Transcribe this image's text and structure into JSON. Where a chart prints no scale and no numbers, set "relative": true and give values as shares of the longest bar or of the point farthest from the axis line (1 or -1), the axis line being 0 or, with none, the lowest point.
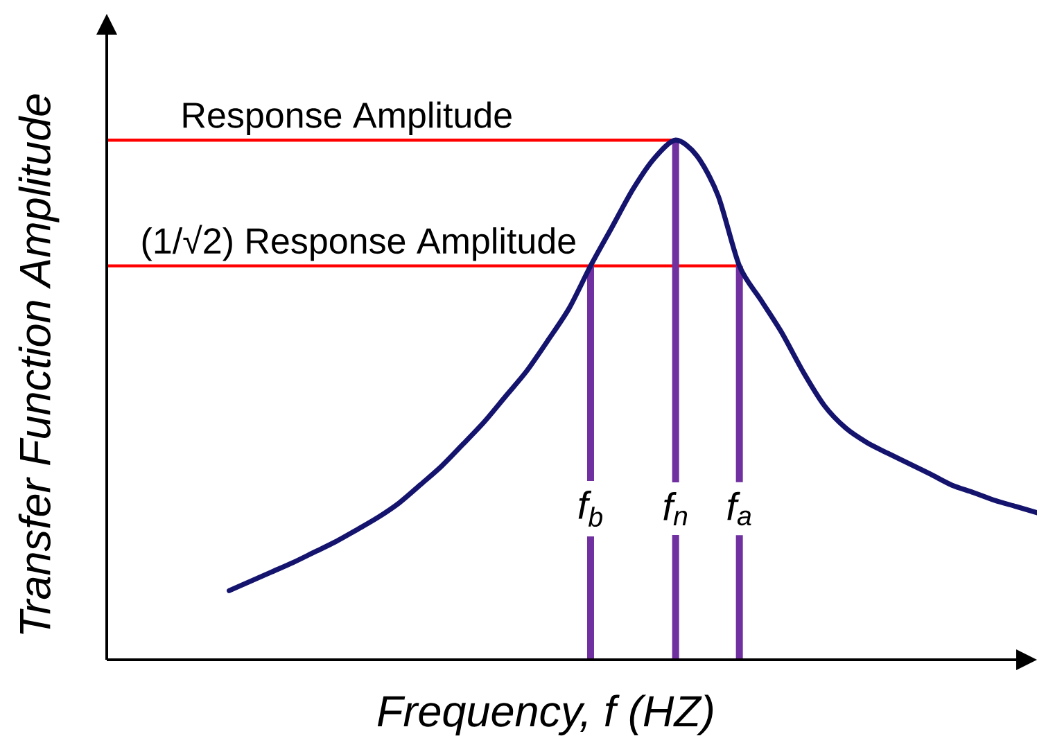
{
  "chart_data": {
    "type": "line",
    "relative": true,
    "xlabel": "Frequency, f (HZ)",
    "ylabel": "Transfer Function Amplitude",
    "categories": [
      null,
      null,
      null,
      null,
      null,
      null,
      null,
      null,
      null,
      null,
      null,
      null,
      null,
      null,
      null,
      null,
      null,
      null,
      null,
      null,
      null,
      null,
      "f$_{b}$",
      null,
      null,
      null,
      "f$_{n}$",
      null,
      null,
      "f$_{a}$",
      null,
      null,
      null,
      null,
      null,
      null,
      null,
      null,
      null,
      null,
      null,
      null,
      null,
      null
    ],
    "series": [
      {
        "color": "#14146e",
        "values": [
          null,
          null,
          null,
          null,
          null,
          0.133,
          0.151,
          0.169,
          0.187,
          0.207,
          0.227,
          0.25,
          0.274,
          0.302,
          0.337,
          0.373,
          0.415,
          0.458,
          0.507,
          0.556,
          0.615,
          0.677,
          0.758,
          0.832,
          0.906,
          0.965,
          1,
          0.97,
          0.893,
          0.758,
          0.693,
          0.629,
          0.554,
          0.489,
          0.446,
          0.418,
          0.397,
          0.377,
          0.357,
          0.336,
          0.322,
          0.307,
          0.295,
          0.283
        ]
      }
    ],
    "ref_lines": [
      {
        "axis": "y",
        "value": 1,
        "label": "Response Amplitude",
        "color": "#ff0000"
      },
      {
        "axis": "y",
        "value": 0.758,
        "label": "(1/√2) Response Amplitude",
        "color": "#ff0000"
      },
      {
        "axis": "x",
        "value": "f$_{b}$",
        "color": "#7030a0"
      },
      {
        "axis": "x",
        "value": "f$_{n}$",
        "color": "#7030a0"
      },
      {
        "axis": "x",
        "value": "f$_{a}$",
        "color": "#7030a0"
      }
    ]
  }
}
